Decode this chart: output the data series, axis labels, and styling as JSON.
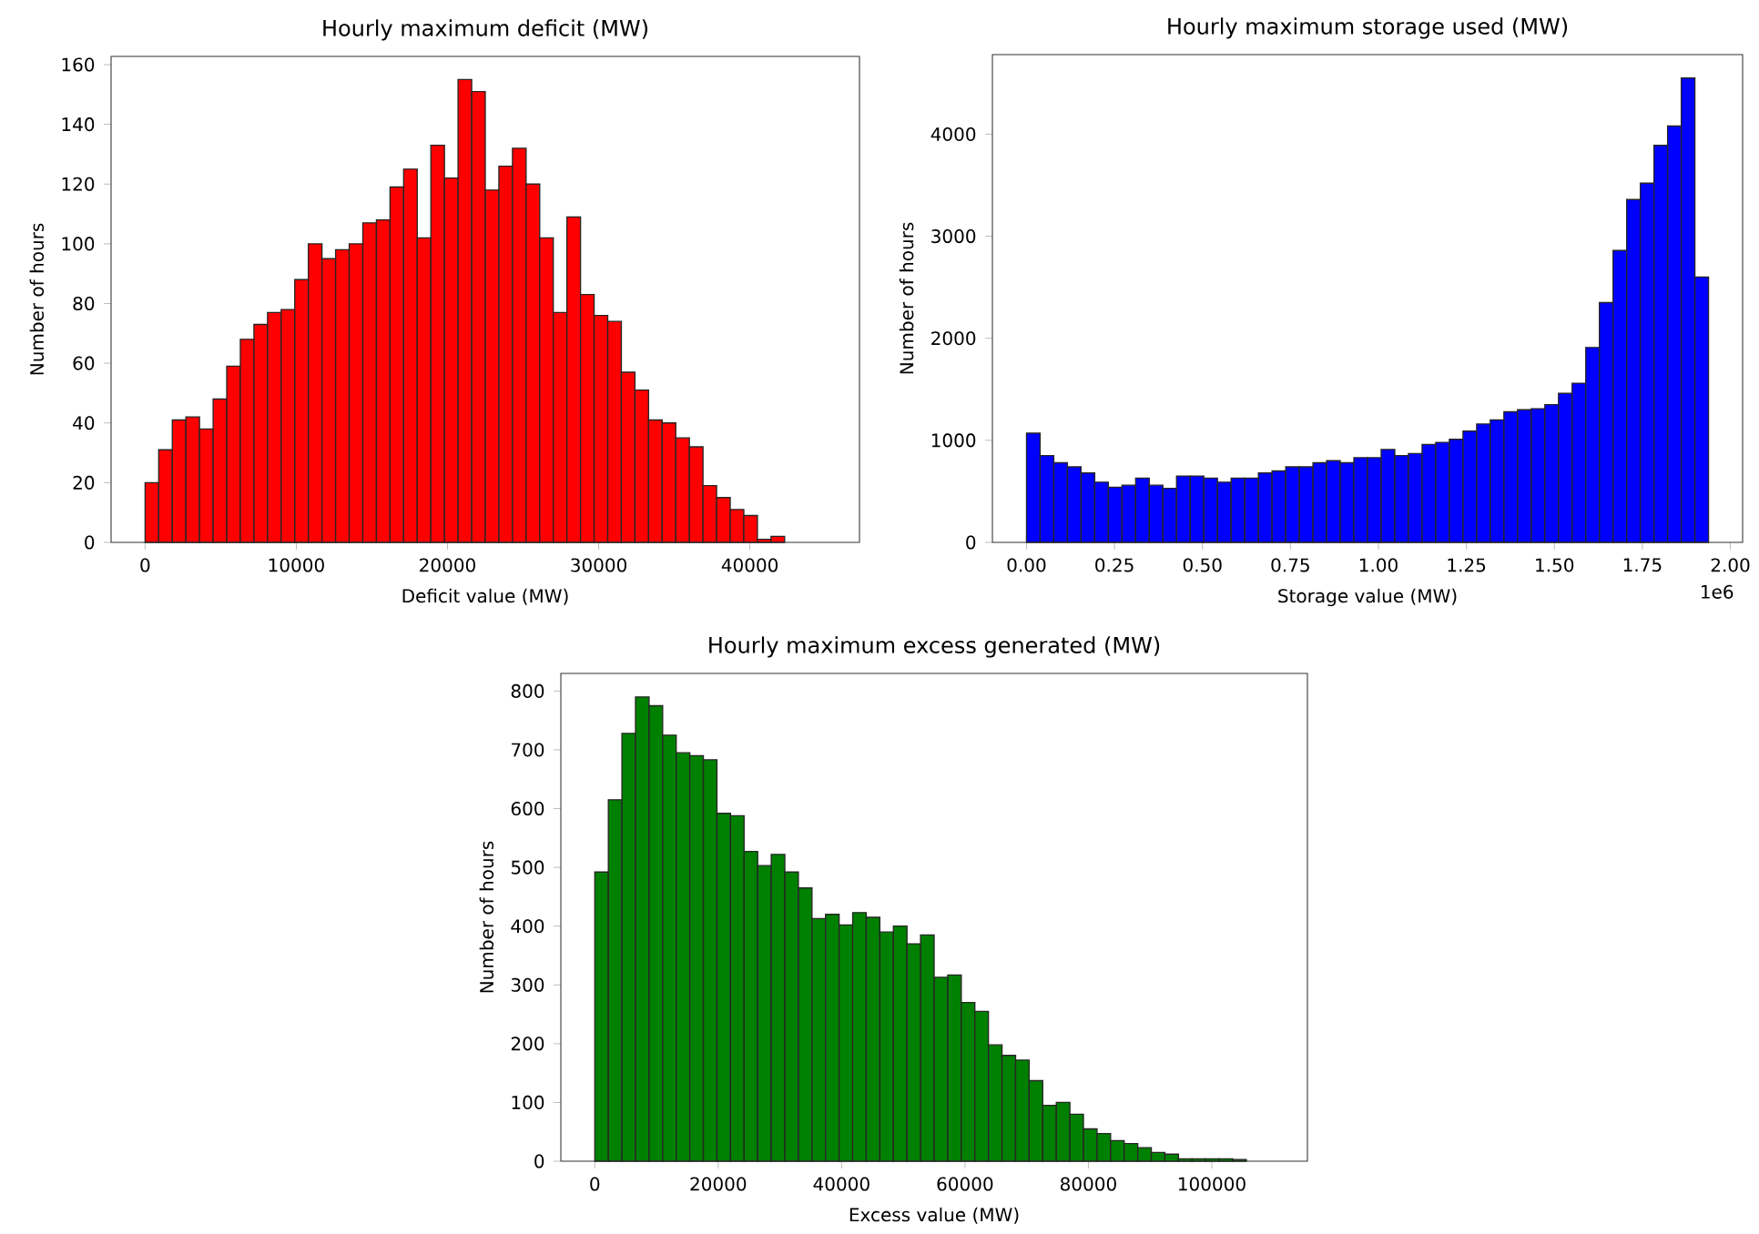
{
  "chart_data": [
    {
      "type": "histogram",
      "title": "Hourly maximum deficit (MW)",
      "xlabel": "Deficit value (MW)",
      "ylabel": "Number of hours",
      "color": "#ff0000",
      "bins": [
        0,
        900,
        1800,
        2700,
        3600,
        4500,
        5400,
        6300,
        7200,
        8100,
        9000,
        9900,
        10800,
        11700,
        12600,
        13500,
        14400,
        15300,
        16200,
        17100,
        18000,
        18900,
        19800,
        20700,
        21600,
        22500,
        23400,
        24300,
        25200,
        26100,
        27000,
        27900,
        28800,
        29700,
        30600,
        31500,
        32400,
        33300,
        34200,
        35100,
        36000,
        36900,
        37800,
        38700,
        39600,
        40500,
        41400,
        42300
      ],
      "values": [
        20,
        31,
        41,
        42,
        38,
        48,
        59,
        68,
        73,
        77,
        78,
        88,
        100,
        95,
        98,
        100,
        107,
        108,
        119,
        125,
        102,
        133,
        122,
        155,
        151,
        118,
        126,
        132,
        120,
        102,
        77,
        109,
        83,
        76,
        74,
        57,
        51,
        41,
        40,
        35,
        32,
        19,
        15,
        11,
        9,
        1,
        2
      ],
      "xlim": [
        -2250,
        47250
      ],
      "ylim": [
        0,
        162.75
      ],
      "xticks": [
        0,
        10000,
        20000,
        30000,
        40000
      ],
      "yticks": [
        0,
        20,
        40,
        60,
        80,
        100,
        120,
        140,
        160
      ],
      "grid": false
    },
    {
      "type": "histogram",
      "title": "Hourly maximum storage used (MW)",
      "xlabel": "Storage value (MW)",
      "ylabel": "Number of hours",
      "color": "#0000ff",
      "annotations": [
        "1e6"
      ],
      "bins": [
        0,
        0.03876,
        0.07752,
        0.11628,
        0.15504,
        0.1938,
        0.23256,
        0.27132,
        0.31008,
        0.34884,
        0.3876,
        0.42636,
        0.46512,
        0.50388,
        0.54264,
        0.5814,
        0.62016,
        0.65892,
        0.69768,
        0.73644,
        0.7752,
        0.81396,
        0.85272,
        0.89148,
        0.93024,
        0.969,
        1.00776,
        1.04652,
        1.08528,
        1.12404,
        1.1628,
        1.20156,
        1.24032,
        1.27908,
        1.31784,
        1.3566,
        1.39536,
        1.43412,
        1.47288,
        1.51164,
        1.5504,
        1.58916,
        1.62792,
        1.66668,
        1.70544,
        1.7442,
        1.78296,
        1.82172,
        1.86048,
        1.89924,
        1.938
      ],
      "values": [
        1070,
        850,
        780,
        740,
        680,
        590,
        540,
        560,
        630,
        560,
        530,
        650,
        650,
        630,
        590,
        630,
        630,
        680,
        700,
        740,
        740,
        780,
        800,
        780,
        830,
        830,
        910,
        850,
        870,
        960,
        980,
        1010,
        1090,
        1160,
        1200,
        1280,
        1300,
        1310,
        1350,
        1460,
        1560,
        1910,
        2350,
        2860,
        3360,
        3520,
        3890,
        4080,
        4550,
        2600
      ],
      "xlim": [
        -0.0969,
        2.0349
      ],
      "ylim": [
        0,
        4780
      ],
      "xticks": [
        {
          "value": 0,
          "label": "0.00"
        },
        {
          "value": 0.25,
          "label": "0.25"
        },
        {
          "value": 0.5,
          "label": "0.50"
        },
        {
          "value": 0.75,
          "label": "0.75"
        },
        {
          "value": 1,
          "label": "1.00"
        },
        {
          "value": 1.25,
          "label": "1.25"
        },
        {
          "value": 1.5,
          "label": "1.50"
        },
        {
          "value": 1.75,
          "label": "1.75"
        },
        {
          "value": 2,
          "label": "2.00"
        }
      ],
      "yticks": [
        0,
        1000,
        2000,
        3000,
        4000
      ],
      "grid": false
    },
    {
      "type": "histogram",
      "title": "Hourly maximum excess generated (MW)",
      "xlabel": "Excess value (MW)",
      "ylabel": "Number of hours",
      "color": "#008000",
      "bins": [
        0,
        2200,
        4400,
        6600,
        8800,
        11000,
        13200,
        15400,
        17600,
        19800,
        22000,
        24200,
        26400,
        28600,
        30800,
        33000,
        35200,
        37400,
        39600,
        41800,
        44000,
        46200,
        48400,
        50600,
        52800,
        55000,
        57200,
        59400,
        61600,
        63800,
        66000,
        68200,
        70400,
        72600,
        74800,
        77000,
        79200,
        81400,
        83600,
        85800,
        88000,
        90200,
        92400,
        94600,
        96800,
        99000,
        101200,
        103400,
        105600
      ],
      "values": [
        492,
        615,
        728,
        790,
        775,
        725,
        695,
        690,
        683,
        592,
        588,
        527,
        503,
        522,
        492,
        465,
        413,
        420,
        402,
        423,
        415,
        390,
        400,
        370,
        385,
        313,
        317,
        270,
        255,
        198,
        180,
        172,
        137,
        95,
        100,
        80,
        55,
        47,
        35,
        30,
        23,
        15,
        12,
        4,
        4,
        4,
        4,
        3
      ],
      "xlim": [
        -5500,
        115500
      ],
      "ylim": [
        0,
        830
      ],
      "xticks": [
        0,
        20000,
        40000,
        60000,
        80000,
        100000
      ],
      "yticks": [
        0,
        100,
        200,
        300,
        400,
        500,
        600,
        700,
        800
      ],
      "grid": false
    }
  ]
}
